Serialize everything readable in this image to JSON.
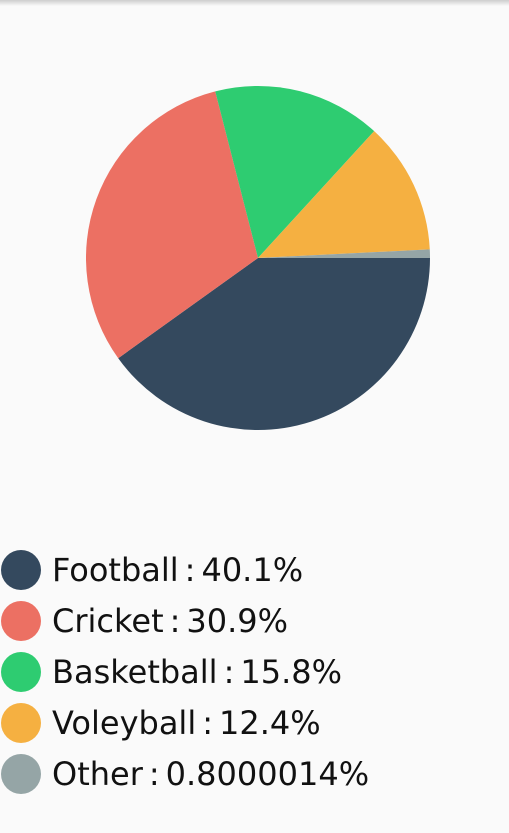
{
  "chart_data": {
    "type": "pie",
    "title": "",
    "legend_position": "bottom-left",
    "slices": [
      {
        "label": "Football",
        "value": 40.1,
        "value_text": "40.1%",
        "color": "#34495e"
      },
      {
        "label": "Cricket",
        "value": 30.9,
        "value_text": "30.9%",
        "color": "#ec7063"
      },
      {
        "label": "Basketball",
        "value": 15.8,
        "value_text": "15.8%",
        "color": "#2ecc71"
      },
      {
        "label": "Voleyball",
        "value": 12.4,
        "value_text": "12.4%",
        "color": "#f5b041"
      },
      {
        "label": "Other",
        "value": 0.8000014,
        "value_text": "0.8000014%",
        "color": "#95a5a6"
      }
    ],
    "separator": ":"
  }
}
